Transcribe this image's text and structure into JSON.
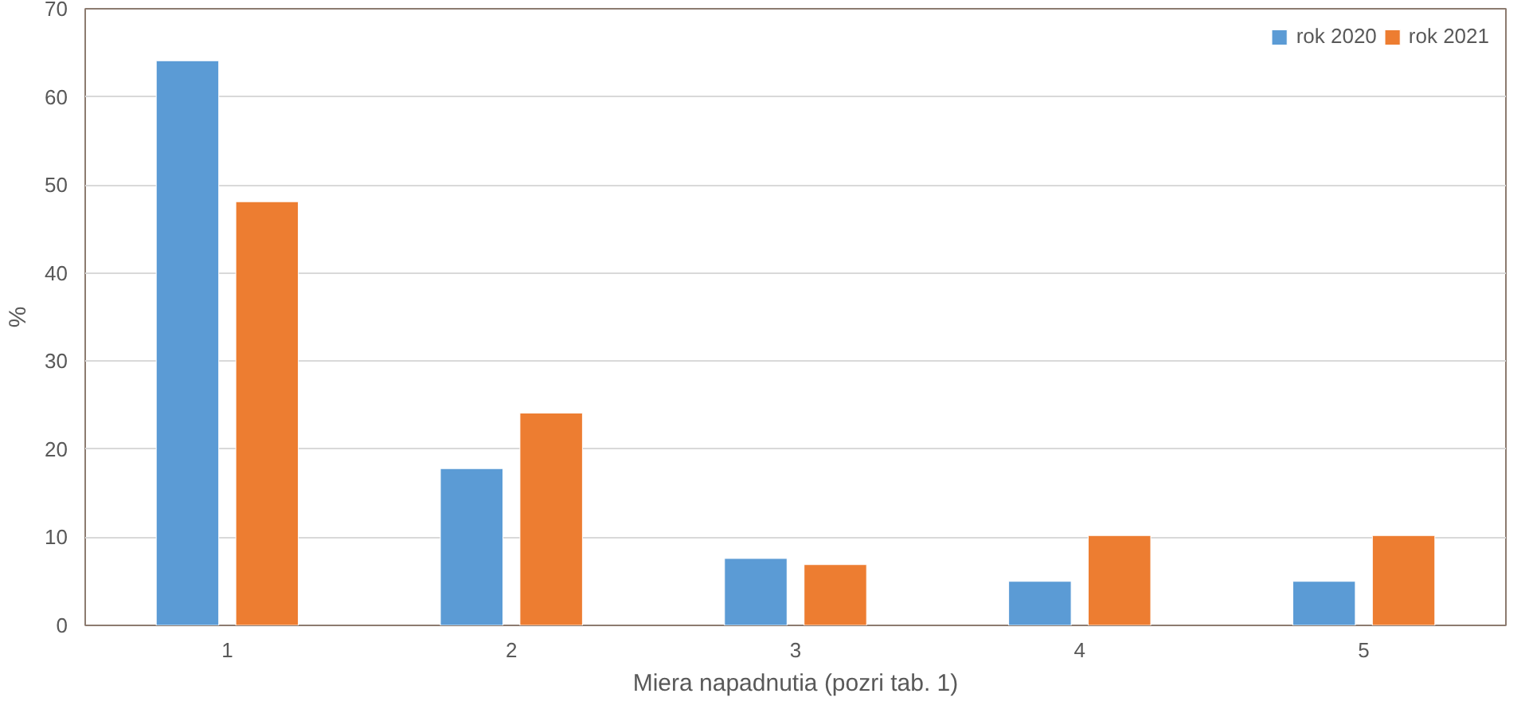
{
  "chart_data": {
    "type": "bar",
    "xlabel": "Miera napadnutia (pozri tab. 1)",
    "ylabel": "%",
    "categories": [
      "1",
      "2",
      "3",
      "4",
      "5"
    ],
    "series": [
      {
        "name": "rok 2020",
        "color": "#5b9bd5",
        "values": [
          64.1,
          17.8,
          7.6,
          5.0,
          5.0
        ]
      },
      {
        "name": "rok 2021",
        "color": "#ed7d31",
        "values": [
          48.1,
          24.1,
          6.9,
          10.2,
          10.2
        ]
      }
    ],
    "ylim": [
      0,
      70
    ],
    "yticks": [
      0,
      10,
      20,
      30,
      40,
      50,
      60,
      70
    ],
    "grid": "y",
    "legend": "top right"
  }
}
